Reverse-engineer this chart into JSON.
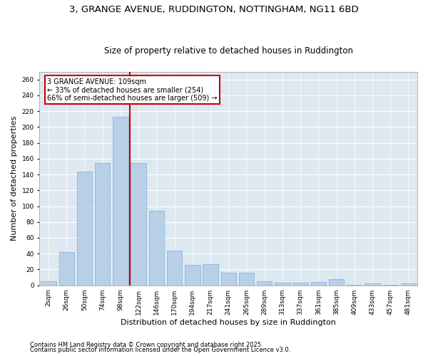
{
  "title1": "3, GRANGE AVENUE, RUDDINGTON, NOTTINGHAM, NG11 6BD",
  "title2": "Size of property relative to detached houses in Ruddington",
  "xlabel": "Distribution of detached houses by size in Ruddington",
  "ylabel": "Number of detached properties",
  "bar_values": [
    5,
    42,
    144,
    154,
    213,
    154,
    94,
    44,
    26,
    27,
    16,
    16,
    5,
    3,
    3,
    4,
    8,
    1,
    2,
    1,
    2
  ],
  "bar_labels": [
    "2sqm",
    "26sqm",
    "50sqm",
    "74sqm",
    "98sqm",
    "122sqm",
    "146sqm",
    "170sqm",
    "194sqm",
    "217sqm",
    "241sqm",
    "265sqm",
    "289sqm",
    "313sqm",
    "337sqm",
    "361sqm",
    "385sqm",
    "409sqm",
    "433sqm",
    "457sqm",
    "481sqm"
  ],
  "bar_color": "#b8cfe8",
  "bar_edge_color": "#7aafd4",
  "vline_x": 4.5,
  "vline_color": "#cc0000",
  "annotation_line1": "3 GRANGE AVENUE: 109sqm",
  "annotation_line2": "← 33% of detached houses are smaller (254)",
  "annotation_line3": "66% of semi-detached houses are larger (509) →",
  "annotation_box_color": "#cc0000",
  "ylim": [
    0,
    270
  ],
  "yticks": [
    0,
    20,
    40,
    60,
    80,
    100,
    120,
    140,
    160,
    180,
    200,
    220,
    240,
    260
  ],
  "bg_color": "#dde8f0",
  "grid_color": "#ffffff",
  "fig_bg_color": "#ffffff",
  "footer1": "Contains HM Land Registry data © Crown copyright and database right 2025.",
  "footer2": "Contains public sector information licensed under the Open Government Licence v3.0.",
  "title1_fontsize": 9.5,
  "title2_fontsize": 8.5,
  "tick_fontsize": 6.5,
  "xlabel_fontsize": 8,
  "ylabel_fontsize": 8,
  "footer_fontsize": 6,
  "annot_fontsize": 7
}
